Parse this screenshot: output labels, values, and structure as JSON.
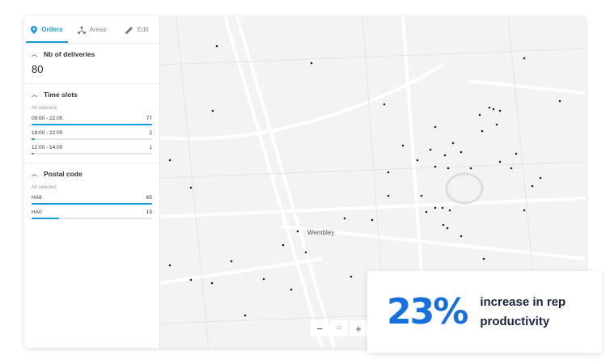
{
  "tabs": [
    {
      "label": "Orders",
      "icon": "map-pin-icon",
      "active": true
    },
    {
      "label": "Areas",
      "icon": "network-icon"
    },
    {
      "label": "Edit",
      "icon": "pencil-icon"
    }
  ],
  "deliveries": {
    "title": "Nb of deliveries",
    "value": "80"
  },
  "time_slots": {
    "title": "Time slots",
    "subtitle": "All selected",
    "items": [
      {
        "label": "09:00 - 22:00",
        "count": "77",
        "fraction": 1
      },
      {
        "label": "18:00 - 22:00",
        "count": "2",
        "fraction": 0.026
      },
      {
        "label": "12:00 - 14:00",
        "count": "1",
        "fraction": 0.013
      }
    ]
  },
  "postal_code": {
    "title": "Postal code",
    "subtitle": "All selected",
    "items": [
      {
        "label": "HA9",
        "count": "65",
        "fraction": 1
      },
      {
        "label": "HA0",
        "count": "15",
        "fraction": 0.23
      }
    ]
  },
  "map": {
    "place_label": "Wembley",
    "zoom_level": "13",
    "zoom_out": "−",
    "zoom_in": "+"
  },
  "stat": {
    "value": "23%",
    "text_line1": "increase in rep",
    "text_line2": "productivity"
  },
  "colors": {
    "accent": "#1a9ad6",
    "stat": "#1670e0"
  }
}
